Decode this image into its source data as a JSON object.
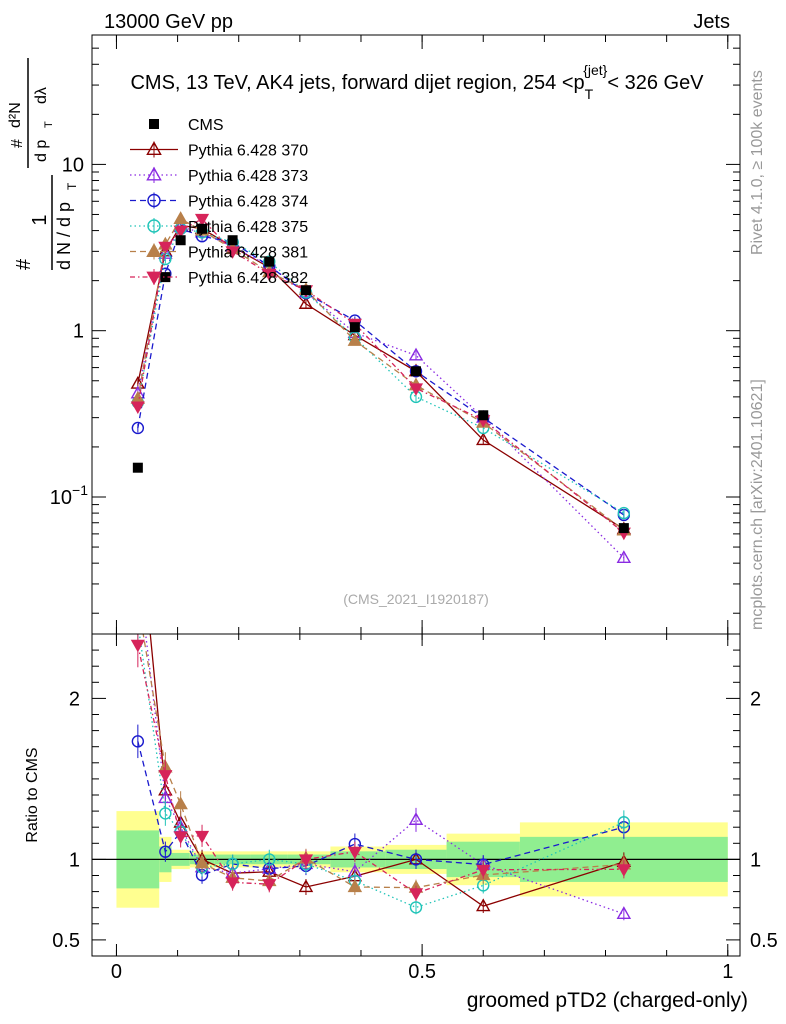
{
  "header": {
    "left": "13000 GeV pp",
    "right": "Jets"
  },
  "side_labels": {
    "rivet": "Rivet 4.1.0, ≥ 100k events",
    "mcplots": "mcplots.cern.ch [arXiv:2401.10621]"
  },
  "chart_data": {
    "type": "line",
    "title": "CMS, 13 TeV, AK4 jets, forward dijet region, 254 <p_T^{jet}< 326 GeV",
    "title_text": {
      "main": "CMS, 13 TeV, AK4 jets, forward dijet region, 254 <p",
      "sup": "{jet}",
      "sub": "T",
      "tail": "< 326 GeV"
    },
    "watermark": "(CMS_2021_I1920187)",
    "xlabel": "groomed pTD2 (charged-only)",
    "ylabel": "1/dN/dpT d²N/dpT dλ",
    "ylabel_parts": {
      "hash": "#",
      "one": "1",
      "dN": "d N / d p",
      "T": "T",
      "d2N": "d²N",
      "dpT": "d p",
      "dl": "dλ"
    },
    "ratio_ylabel": "Ratio to CMS",
    "xlim": [
      -0.04,
      1.02
    ],
    "ylim_main": [
      0.015,
      60
    ],
    "ylim_ratio": [
      0.4,
      2.4
    ],
    "x_ticks": [
      {
        "v": 0,
        "label": "0"
      },
      {
        "v": 0.5,
        "label": "0.5"
      },
      {
        "v": 1,
        "label": "1"
      }
    ],
    "y_ticks_main": [
      {
        "v": 0.1,
        "base": "10",
        "exp": "−1"
      },
      {
        "v": 1,
        "label": "1"
      },
      {
        "v": 10,
        "label": "10"
      }
    ],
    "y_ticks_ratio": [
      {
        "v": 0.5,
        "label": "0.5"
      },
      {
        "v": 1,
        "label": "1"
      },
      {
        "v": 2,
        "label": "2"
      }
    ],
    "bin_edges": [
      0,
      0.07,
      0.09,
      0.12,
      0.16,
      0.22,
      0.28,
      0.35,
      0.44,
      0.54,
      0.66,
      1.0
    ],
    "x": [
      0.035,
      0.08,
      0.105,
      0.14,
      0.19,
      0.25,
      0.31,
      0.39,
      0.49,
      0.6,
      0.83
    ],
    "data": {
      "name": "CMS",
      "values": [
        0.15,
        2.1,
        3.5,
        4.1,
        3.5,
        2.6,
        1.75,
        1.05,
        0.57,
        0.31,
        0.065
      ],
      "band_inner": [
        0.18,
        0.08,
        0.04,
        0.03,
        0.03,
        0.03,
        0.03,
        0.05,
        0.06,
        0.11,
        0.14
      ],
      "band_outer": [
        0.3,
        0.14,
        0.06,
        0.05,
        0.05,
        0.05,
        0.05,
        0.08,
        0.09,
        0.16,
        0.23
      ]
    },
    "series": [
      {
        "name": "Pythia 6.428 370",
        "color": "#8b0000",
        "dash": "",
        "marker": "triangle-open",
        "values": [
          0.48,
          3.0,
          4.3,
          4.1,
          3.2,
          2.4,
          1.45,
          0.94,
          0.57,
          0.22,
          0.064
        ]
      },
      {
        "name": "Pythia 6.428 373",
        "color": "#8a2be2",
        "dash": "1.5,3",
        "marker": "triangle-open",
        "values": [
          0.42,
          2.9,
          4.2,
          3.9,
          3.2,
          2.45,
          1.7,
          0.97,
          0.71,
          0.3,
          0.043
        ]
      },
      {
        "name": "Pythia 6.428 374",
        "color": "#1a1acd",
        "dash": "6,4",
        "marker": "circle-open",
        "values": [
          0.26,
          2.2,
          4.1,
          3.7,
          3.4,
          2.45,
          1.68,
          1.15,
          0.57,
          0.3,
          0.078
        ]
      },
      {
        "name": "Pythia 6.428 375",
        "color": "#20c4b8",
        "dash": "1.5,3",
        "marker": "circle-open",
        "values": [
          0.37,
          2.7,
          4.1,
          3.9,
          3.4,
          2.6,
          1.7,
          0.91,
          0.4,
          0.26,
          0.08
        ]
      },
      {
        "name": "Pythia 6.428 381",
        "color": "#b8804a",
        "dash": "6,4",
        "marker": "triangle-filled",
        "values": [
          0.39,
          3.3,
          4.7,
          4.0,
          3.1,
          2.25,
          1.76,
          0.87,
          0.47,
          0.28,
          0.063
        ]
      },
      {
        "name": "Pythia 6.428 382",
        "color": "#d6245a",
        "dash": "5,3,1.5,3",
        "marker": "triangle-down-filled",
        "values": [
          0.35,
          3.2,
          4.0,
          4.7,
          3.0,
          2.2,
          1.75,
          1.1,
          0.45,
          0.29,
          0.061
        ]
      }
    ]
  }
}
